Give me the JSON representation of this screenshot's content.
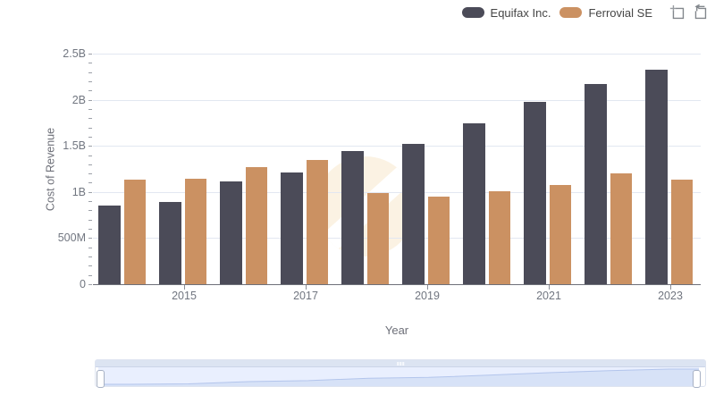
{
  "legend": {
    "items": [
      {
        "label": "Equifax Inc.",
        "color": "#4B4B58"
      },
      {
        "label": "Ferrovial SE",
        "color": "#CB9162"
      }
    ]
  },
  "toolbox": {
    "icons": [
      "box-zoom-icon",
      "zoom-reset-icon"
    ]
  },
  "chart_data": {
    "type": "bar",
    "title": "",
    "xlabel": "Year",
    "ylabel": "Cost of Revenue",
    "categories": [
      "2014",
      "2015",
      "2016",
      "2017",
      "2018",
      "2019",
      "2020",
      "2021",
      "2022",
      "2023"
    ],
    "series": [
      {
        "name": "Equifax Inc.",
        "color": "#4B4B58",
        "values": [
          0.85,
          0.89,
          1.11,
          1.21,
          1.44,
          1.52,
          1.74,
          1.98,
          2.17,
          2.33
        ]
      },
      {
        "name": "Ferrovial SE",
        "color": "#CB9162",
        "values": [
          1.13,
          1.14,
          1.27,
          1.35,
          0.99,
          0.95,
          1.01,
          1.08,
          1.2,
          1.13
        ]
      }
    ],
    "unit": "billions",
    "ylim": [
      0,
      2.5
    ],
    "yticks": [
      {
        "value": 0,
        "label": "0"
      },
      {
        "value": 0.5,
        "label": "500M"
      },
      {
        "value": 1,
        "label": "1B"
      },
      {
        "value": 1.5,
        "label": "1.5B"
      },
      {
        "value": 2,
        "label": "2B"
      },
      {
        "value": 2.5,
        "label": "2.5B"
      }
    ],
    "xtick_labels": [
      "2015",
      "2017",
      "2019",
      "2021",
      "2023"
    ],
    "legend_position": "top-right",
    "grid": true,
    "navigator": {
      "selected_range": "full",
      "shadow_series": "Equifax Inc."
    }
  },
  "colors": {
    "grid_line": "#E2E7F1",
    "axis_line": "#6E7079",
    "tick_label": "#717680",
    "navigator_track": "#DCE4F2",
    "navigator_fill": "#E9EFFE",
    "navigator_shadow_fill": "#D7E2F7",
    "navigator_shadow_line": "#B3C5EC",
    "watermark": "#FBF2E3"
  }
}
